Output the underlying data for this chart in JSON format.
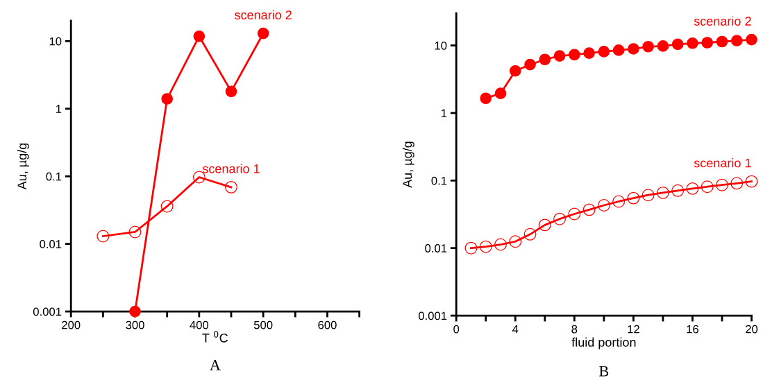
{
  "chart_data": [
    {
      "type": "line",
      "xlabel": "T $^{0}$C",
      "ylabel": "Au, µg/g",
      "log": "y",
      "marker": "circle",
      "annotations": [
        "A"
      ],
      "xlim": [
        200,
        650
      ],
      "xticks": [
        200,
        {
          "value": 250,
          "label": null
        },
        300,
        {
          "value": 350,
          "label": null
        },
        400,
        {
          "value": 450,
          "label": null
        },
        500,
        {
          "value": 550,
          "label": null
        },
        600,
        {
          "value": 650,
          "label": null
        }
      ],
      "ylim": [
        0.001,
        20
      ],
      "yticks": [
        0.001,
        0.01,
        0.1,
        1,
        10
      ],
      "series": [
        {
          "name": "scenario 1",
          "color": "#ff0000",
          "x": [
            250,
            300,
            350,
            400,
            450
          ],
          "values": [
            0.013,
            0.015,
            0.036,
            0.097,
            0.069
          ]
        },
        {
          "name": "scenario 2",
          "color": "#ff0000",
          "x": [
            300,
            350,
            400,
            450,
            500
          ],
          "values": [
            0.001,
            1.4,
            11.8,
            1.8,
            13
          ]
        }
      ]
    },
    {
      "type": "line",
      "xlabel": "fluid portion",
      "ylabel": "Au, µg/g",
      "log": "y",
      "marker": "circle",
      "annotations": [
        "B"
      ],
      "xlim": [
        0,
        20
      ],
      "xticks": [
        0,
        {
          "value": 2,
          "label": null
        },
        4,
        {
          "value": 6,
          "label": null
        },
        8,
        {
          "value": 10,
          "label": null
        },
        12,
        {
          "value": 14,
          "label": null
        },
        16,
        {
          "value": 18,
          "label": null
        },
        20
      ],
      "ylim": [
        0.001,
        30
      ],
      "yticks": [
        0.001,
        0.01,
        0.1,
        1,
        10
      ],
      "series": [
        {
          "name": "scenario 1",
          "color": "#ff0000",
          "x": [
            1,
            2,
            3,
            4,
            5,
            6,
            7,
            8,
            9,
            10,
            11,
            12,
            13,
            14,
            15,
            16,
            17,
            18,
            19,
            20
          ],
          "values": [
            0.01,
            0.0105,
            0.0113,
            0.0125,
            0.016,
            0.022,
            0.027,
            0.032,
            0.037,
            0.043,
            0.049,
            0.055,
            0.061,
            0.066,
            0.071,
            0.076,
            0.081,
            0.086,
            0.091,
            0.097
          ]
        },
        {
          "name": "scenario 2",
          "color": "#ff0000",
          "x": [
            2,
            3,
            4,
            5,
            6,
            7,
            8,
            9,
            10,
            11,
            12,
            13,
            14,
            15,
            16,
            17,
            18,
            19,
            20
          ],
          "values": [
            1.65,
            1.95,
            4.2,
            5.2,
            6.2,
            7.0,
            7.3,
            7.7,
            8.1,
            8.5,
            8.9,
            9.6,
            9.8,
            10.4,
            10.8,
            11.0,
            11.4,
            11.8,
            12.2
          ]
        }
      ]
    }
  ]
}
